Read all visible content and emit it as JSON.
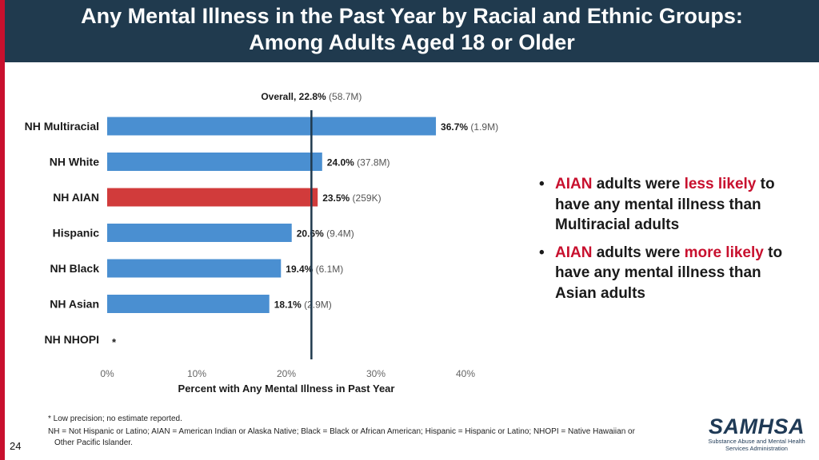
{
  "header": {
    "title_line1": "Any Mental Illness in the Past Year by Racial and Ethnic Groups:",
    "title_line2": "Among Adults Aged 18 or Older"
  },
  "colors": {
    "bar_default": "#4a8fd1",
    "bar_highlight": "#d13b3b",
    "accent_red": "#c8102e",
    "header_bg": "#203a4e"
  },
  "chart_data": {
    "type": "bar",
    "orientation": "horizontal",
    "categories": [
      "NH Multiracial",
      "NH White",
      "NH AIAN",
      "Hispanic",
      "NH Black",
      "NH Asian",
      "NH NHOPI"
    ],
    "values": [
      36.7,
      24.0,
      23.5,
      20.6,
      19.4,
      18.1,
      null
    ],
    "value_labels": [
      "36.7%",
      "24.0%",
      "23.5%",
      "20.6%",
      "19.4%",
      "18.1%",
      "*"
    ],
    "count_labels": [
      "(1.9M)",
      "(37.8M)",
      "(259K)",
      "(9.4M)",
      "(6.1M)",
      "(2.9M)",
      ""
    ],
    "highlight_category": "NH AIAN",
    "reference_line": {
      "value": 22.8,
      "label_bold": "Overall, 22.8%",
      "label_count": "(58.7M)"
    },
    "xlim": [
      0,
      40
    ],
    "xticks": [
      0,
      10,
      20,
      30,
      40
    ],
    "xtick_labels": [
      "0%",
      "10%",
      "20%",
      "30%",
      "40%"
    ],
    "xlabel": "Percent with Any Mental Illness in Past Year",
    "ylabel": "",
    "title": "",
    "grid": false
  },
  "bullets": [
    {
      "segments": [
        {
          "text": "AIAN",
          "red": true
        },
        {
          "text": " adults were ",
          "red": false
        },
        {
          "text": "less likely",
          "red": true
        },
        {
          "text": " to have any mental illness than Multiracial adults",
          "red": false
        }
      ]
    },
    {
      "segments": [
        {
          "text": "AIAN",
          "red": true
        },
        {
          "text": " adults were ",
          "red": false
        },
        {
          "text": "more likely",
          "red": true
        },
        {
          "text": " to have any mental illness than Asian adults",
          "red": false
        }
      ]
    }
  ],
  "footnotes": {
    "line1": "* Low precision; no estimate reported.",
    "line2a": "NH = Not Hispanic or Latino; AIAN = American Indian or Alaska Native; Black = Black or African American; Hispanic = Hispanic or Latino; NHOPI = Native Hawaiian or",
    "line2b": "Other Pacific Islander."
  },
  "page_number": "24",
  "logo": {
    "name": "SAMHSA",
    "subtitle_line1": "Substance Abuse and Mental Health",
    "subtitle_line2": "Services Administration"
  }
}
